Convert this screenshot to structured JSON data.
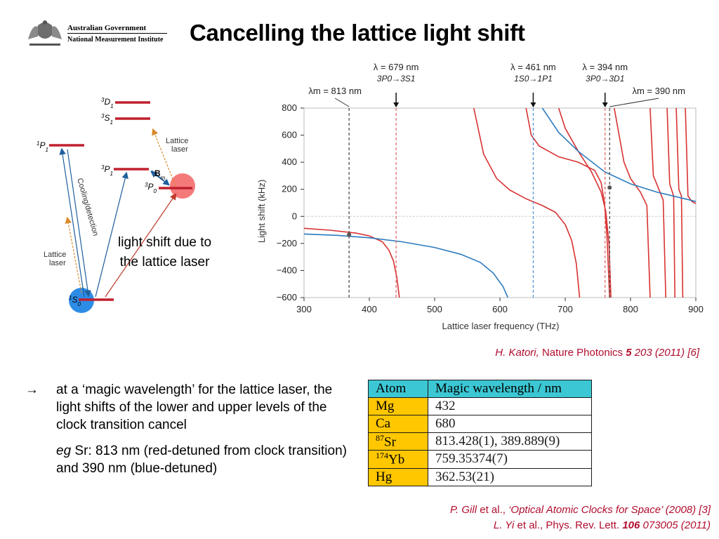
{
  "header": {
    "logo_line1": "Australian Government",
    "logo_line2": "National Measurement Institute",
    "title": "Cancelling the lattice light shift"
  },
  "level_diagram": {
    "levels": [
      "3D1",
      "3S1",
      "1P1",
      "3P1",
      "3P0",
      "1S0"
    ],
    "arrow_labels": {
      "cooling": "Cooling/detection",
      "lattice_upper_1": "Lattice",
      "lattice_upper_2": "laser",
      "lattice_lower_1": "Lattice",
      "lattice_lower_2": "laser",
      "b_field": "B",
      "b_sub": "m"
    },
    "note_line1": "light shift due to",
    "note_line2": "the lattice laser"
  },
  "chart_data": {
    "type": "line",
    "xlabel": "Lattice laser frequency (THz)",
    "ylabel": "Light shift (kHz)",
    "xlim": [
      300,
      900
    ],
    "ylim": [
      -600,
      800
    ],
    "xticks": [
      "300",
      "400",
      "500",
      "600",
      "700",
      "800",
      "900"
    ],
    "yticks": [
      "800",
      "600",
      "400",
      "200",
      "0",
      "−200",
      "−400",
      "−600"
    ],
    "grid": false,
    "series": [
      {
        "color": "#d83232",
        "points": [
          [
            300,
            -88
          ],
          [
            340,
            -102
          ],
          [
            380,
            -124
          ],
          [
            400,
            -144
          ],
          [
            420,
            -188
          ],
          [
            430,
            -250
          ],
          [
            437,
            -330
          ],
          [
            442,
            -450
          ],
          [
            446,
            -600
          ]
        ],
        "resonance_branches": [
          [
            [
              560,
              800
            ],
            [
              575,
              460
            ],
            [
              595,
              280
            ],
            [
              615,
              195
            ],
            [
              640,
              130
            ],
            [
              665,
              80
            ],
            [
              685,
              30
            ],
            [
              700,
              -60
            ],
            [
              710,
              -180
            ],
            [
              717,
              -350
            ],
            [
              722,
              -600
            ]
          ],
          [
            [
              640,
              800
            ],
            [
              648,
              600
            ],
            [
              660,
              520
            ],
            [
              690,
              440
            ],
            [
              720,
              400
            ],
            [
              745,
              340
            ],
            [
              755,
              250
            ],
            [
              760,
              100
            ],
            [
              764,
              -150
            ],
            [
              768,
              -600
            ]
          ],
          [
            [
              690,
              800
            ],
            [
              700,
              650
            ],
            [
              720,
              480
            ],
            [
              740,
              330
            ],
            [
              755,
              180
            ],
            [
              762,
              40
            ],
            [
              767,
              -200
            ],
            [
              770,
              -600
            ]
          ],
          [
            [
              775,
              800
            ],
            [
              790,
              400
            ],
            [
              800,
              280
            ],
            [
              815,
              180
            ],
            [
              825,
              80
            ],
            [
              830,
              -600
            ]
          ],
          [
            [
              830,
              800
            ],
            [
              835,
              300
            ],
            [
              845,
              180
            ],
            [
              850,
              120
            ],
            [
              854,
              -600
            ]
          ],
          [
            [
              856,
              800
            ],
            [
              860,
              240
            ],
            [
              866,
              150
            ],
            [
              868,
              -600
            ]
          ],
          [
            [
              870,
              800
            ],
            [
              874,
              200
            ],
            [
              878,
              150
            ],
            [
              880,
              -600
            ]
          ],
          [
            [
              884,
              800
            ],
            [
              888,
              150
            ],
            [
              894,
              110
            ],
            [
              900,
              95
            ]
          ]
        ]
      },
      {
        "color": "#2b7bbf",
        "points": [
          [
            300,
            -130
          ],
          [
            350,
            -140
          ],
          [
            400,
            -158
          ],
          [
            450,
            -188
          ],
          [
            500,
            -230
          ],
          [
            540,
            -280
          ],
          [
            570,
            -340
          ],
          [
            590,
            -420
          ],
          [
            605,
            -520
          ],
          [
            612,
            -600
          ]
        ],
        "upper_branch": [
          [
            665,
            800
          ],
          [
            690,
            620
          ],
          [
            720,
            480
          ],
          [
            760,
            330
          ],
          [
            800,
            240
          ],
          [
            840,
            180
          ],
          [
            870,
            145
          ],
          [
            900,
            110
          ]
        ]
      }
    ],
    "resonance_markers": [
      {
        "label_line1": "λ = 679 nm",
        "label_line2": "3P0→3S1",
        "x": 441,
        "style": "red-dashed"
      },
      {
        "label_line1": "λ = 461 nm",
        "label_line2": "1S0→1P1",
        "x": 651,
        "style": "blue-dashed"
      },
      {
        "label_line1": "λ = 394 nm",
        "label_line2": "3P0→3D1",
        "x": 761,
        "style": "red-dashed"
      }
    ],
    "magic_markers": [
      {
        "label": "λm = 813 nm",
        "x": 369,
        "y": -135
      },
      {
        "label": "λm = 390 nm",
        "x": 768,
        "y": 213
      }
    ]
  },
  "citation_katori": {
    "author": "H. Katori,",
    "journal": " Nature Photonics ",
    "volume": "5",
    "rest": " 203 (2011) [6]"
  },
  "bullets": {
    "arrow": "→",
    "para1": "at a ‘magic wavelength’ for the lattice laser, the light shifts of the lower and upper levels of the clock transition cancel",
    "para2_eg": "eg",
    "para2_rest": " Sr: 813 nm (red-detuned from clock transition) and 390 nm (blue-detuned)"
  },
  "magic_table": {
    "headers": [
      "Atom",
      "Magic wavelength / nm"
    ],
    "rows": [
      {
        "sup": "",
        "atom": "Mg",
        "value": "432"
      },
      {
        "sup": "",
        "atom": "Ca",
        "value": "680"
      },
      {
        "sup": "87",
        "atom": "Sr",
        "value": "813.428(1), 389.889(9)"
      },
      {
        "sup": "174",
        "atom": "Yb",
        "value": "759.35374(7)"
      },
      {
        "sup": "",
        "atom": "Hg",
        "value": "362.53(21)"
      }
    ]
  },
  "citation_refs": {
    "line1_author": "P. Gill",
    "line1_etal": " et al., ",
    "line1_title": "‘Optical Atomic Clocks for Space’ (2008) [3]",
    "line2_author": "L. Yi",
    "line2_etal": " et al., Phys. Rev. Lett. ",
    "line2_vol": "106",
    "line2_rest": " 073005 (2011)"
  },
  "colors": {
    "red_curve": "#d83232",
    "blue_curve": "#2b7bbf",
    "citation": "#b10d2e",
    "table_header": "#3cc7d4",
    "table_atom": "#ffc700"
  }
}
